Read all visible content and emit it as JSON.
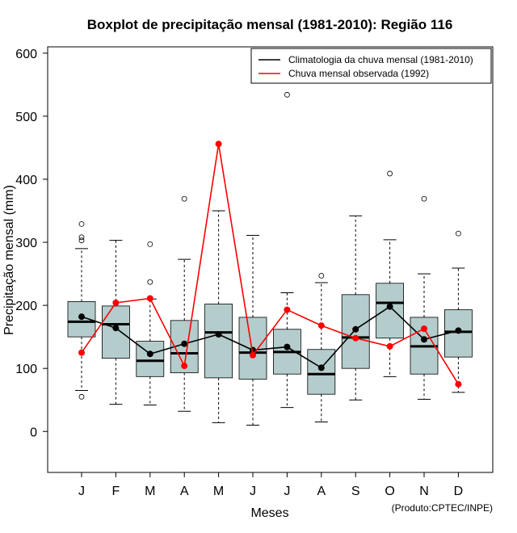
{
  "chart_data": {
    "type": "boxplot",
    "title": "Boxplot de precipitação mensal (1981-2010): Região 116",
    "xlabel": "Meses",
    "ylabel": "Precipitação mensal (mm)",
    "credit": "(Produto:CPTEC/INPE)",
    "ylim": [
      -65,
      610
    ],
    "yticks": [
      0,
      100,
      200,
      300,
      400,
      500,
      600
    ],
    "categories": [
      "J",
      "F",
      "M",
      "A",
      "M",
      "J",
      "J",
      "A",
      "S",
      "O",
      "N",
      "D"
    ],
    "boxes": [
      {
        "low": 65,
        "q1": 150,
        "median": 174,
        "q3": 206,
        "high": 290,
        "outliers": [
          55,
          303,
          308,
          329
        ]
      },
      {
        "low": 43,
        "q1": 116,
        "median": 170,
        "q3": 199,
        "high": 303,
        "outliers": []
      },
      {
        "low": 42,
        "q1": 87,
        "median": 112,
        "q3": 143,
        "high": 210,
        "outliers": [
          237,
          297
        ]
      },
      {
        "low": 32,
        "q1": 93,
        "median": 124,
        "q3": 176,
        "high": 273,
        "outliers": [
          369
        ]
      },
      {
        "low": 14,
        "q1": 85,
        "median": 157,
        "q3": 202,
        "high": 350,
        "outliers": []
      },
      {
        "low": 10,
        "q1": 83,
        "median": 125,
        "q3": 181,
        "high": 311,
        "outliers": []
      },
      {
        "low": 38,
        "q1": 91,
        "median": 126,
        "q3": 162,
        "high": 220,
        "outliers": [
          534
        ]
      },
      {
        "low": 15,
        "q1": 59,
        "median": 91,
        "q3": 130,
        "high": 236,
        "outliers": [
          247
        ]
      },
      {
        "low": 50,
        "q1": 100,
        "median": 149,
        "q3": 217,
        "high": 342,
        "outliers": []
      },
      {
        "low": 87,
        "q1": 148,
        "median": 204,
        "q3": 235,
        "high": 304,
        "outliers": [
          409
        ]
      },
      {
        "low": 51,
        "q1": 91,
        "median": 135,
        "q3": 181,
        "high": 250,
        "outliers": [
          369
        ]
      },
      {
        "low": 62,
        "q1": 118,
        "median": 158,
        "q3": 193,
        "high": 259,
        "outliers": [
          314
        ]
      }
    ],
    "series": [
      {
        "name": "Climatologia da chuva mensal (1981-2010)",
        "color": "#000000",
        "values": [
          182,
          164,
          123,
          139,
          154,
          129,
          134,
          101,
          162,
          198,
          146,
          160
        ]
      },
      {
        "name": "Chuva mensal observada (1992)",
        "color": "#ff0000",
        "values": [
          125,
          204,
          211,
          104,
          456,
          121,
          193,
          168,
          148,
          135,
          163,
          75
        ]
      }
    ],
    "box_color": "#b4cccc",
    "legend_position": "top-right"
  }
}
